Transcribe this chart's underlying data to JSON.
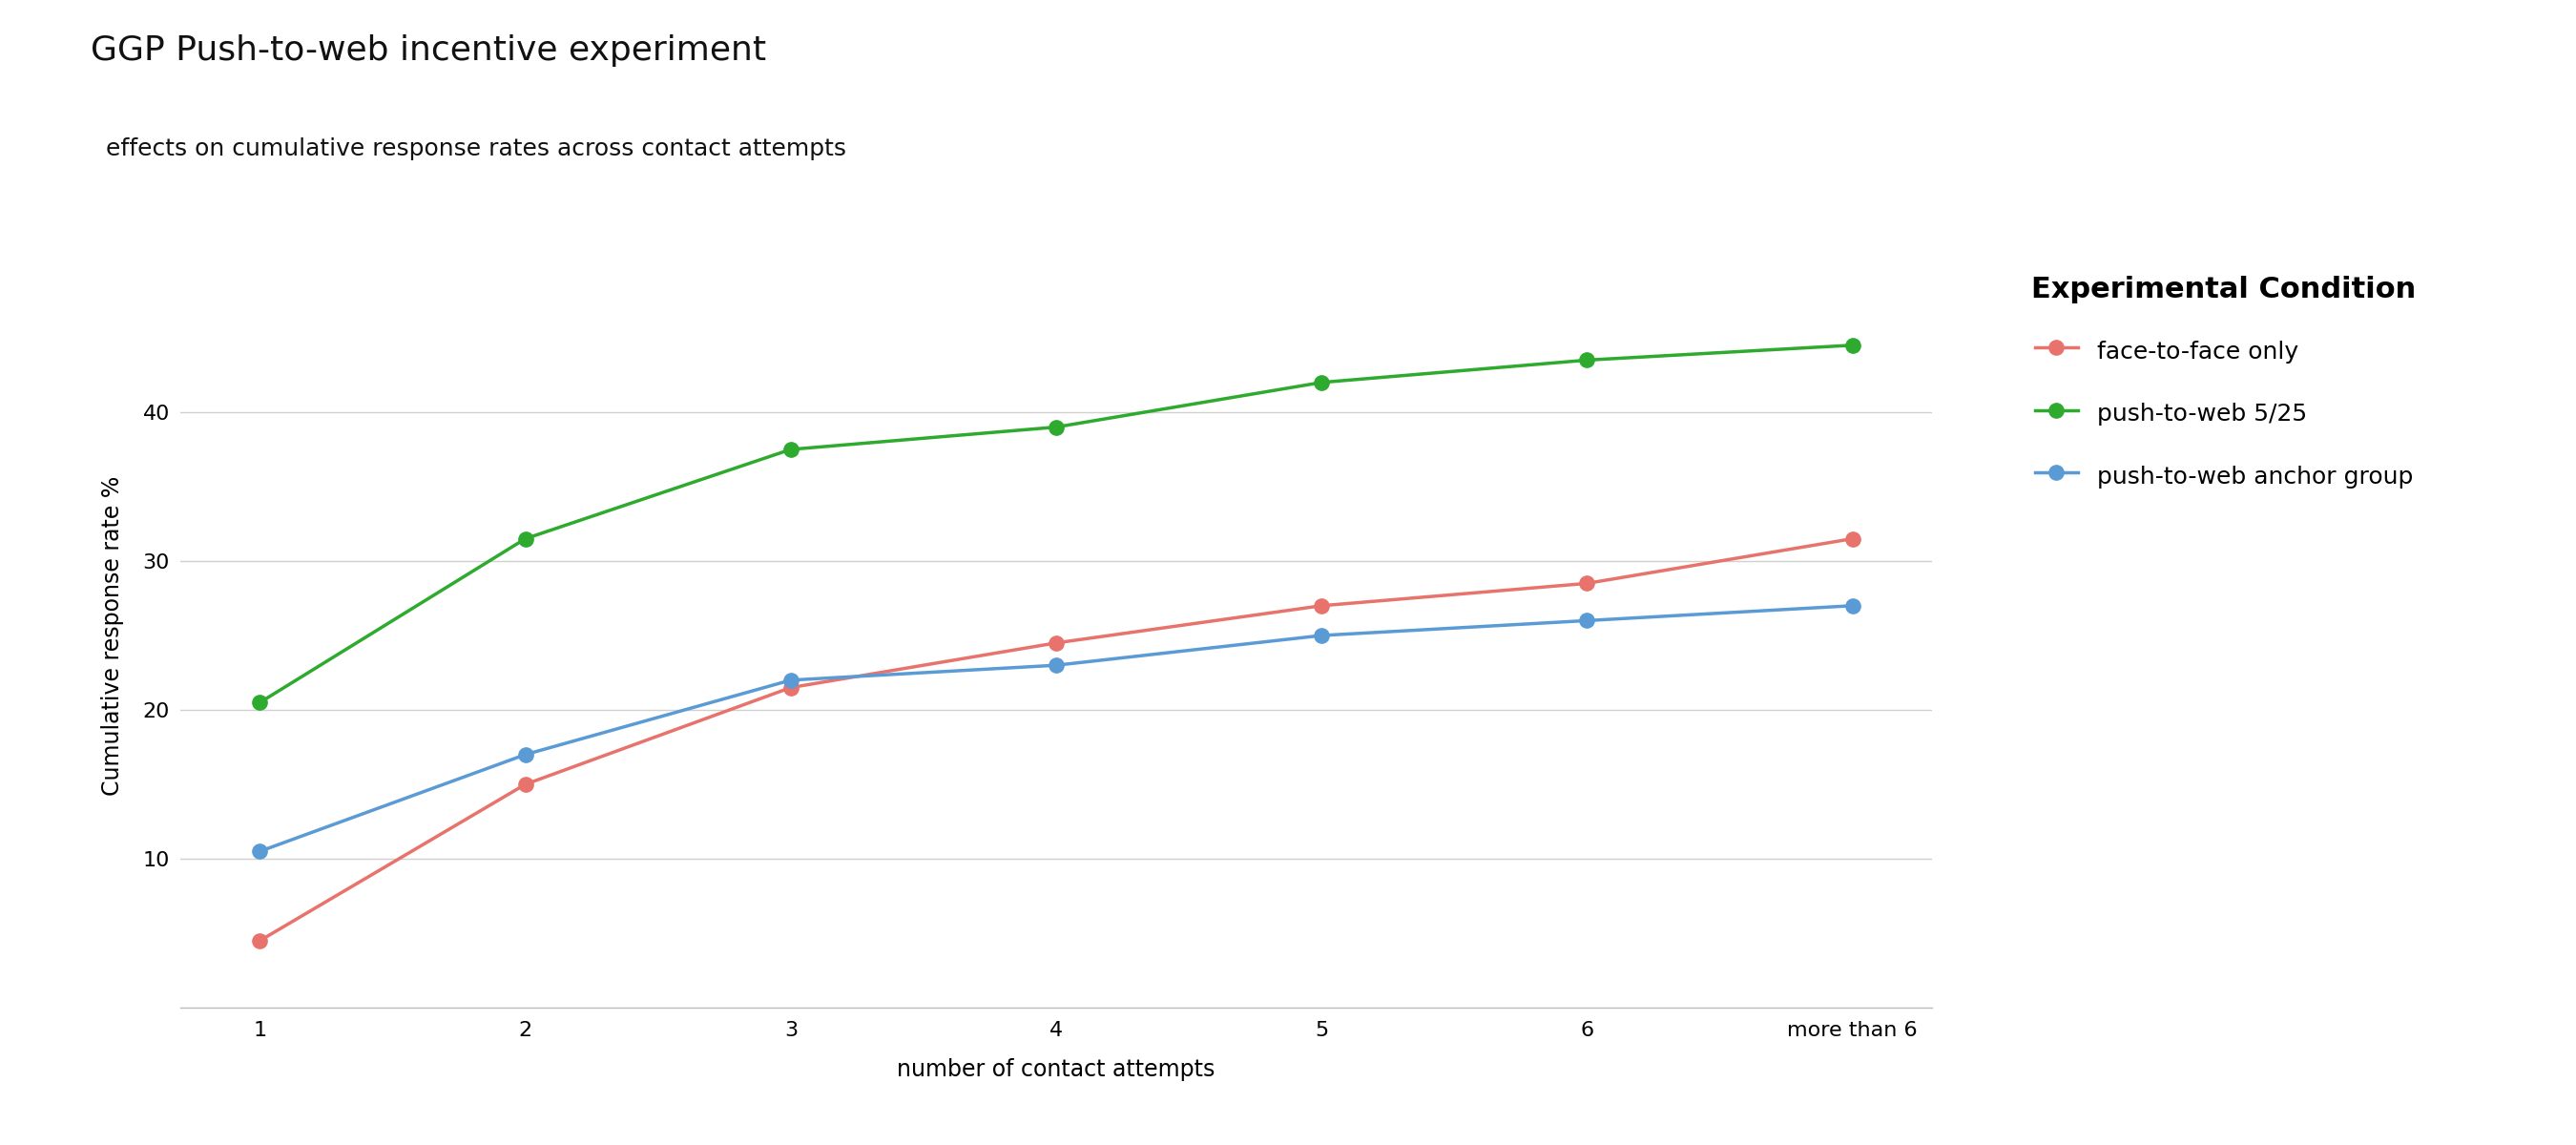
{
  "title": "GGP Push-to-web incentive experiment",
  "subtitle": "  effects on cumulative response rates across contact attempts",
  "xlabel": "number of contact attempts",
  "ylabel": "Cumulative response rate %",
  "x_labels": [
    "1",
    "2",
    "3",
    "4",
    "5",
    "6",
    "more than 6"
  ],
  "x_values": [
    1,
    2,
    3,
    4,
    5,
    6,
    7
  ],
  "series": [
    {
      "label": "face-to-face only",
      "color": "#e8736c",
      "values": [
        4.5,
        15.0,
        21.5,
        24.5,
        27.0,
        28.5,
        31.5
      ]
    },
    {
      "label": "push-to-web 5/25",
      "color": "#2eaa2e",
      "values": [
        20.5,
        31.5,
        37.5,
        39.0,
        42.0,
        43.5,
        44.5
      ]
    },
    {
      "label": "push-to-web anchor group",
      "color": "#5b9bd5",
      "values": [
        10.5,
        17.0,
        22.0,
        23.0,
        25.0,
        26.0,
        27.0
      ]
    }
  ],
  "ylim": [
    0,
    50
  ],
  "yticks": [
    10,
    20,
    30,
    40
  ],
  "legend_title": "Experimental Condition",
  "background_color": "#ffffff",
  "grid_color": "#d0d0d0",
  "title_fontsize": 26,
  "subtitle_fontsize": 18,
  "axis_label_fontsize": 17,
  "tick_fontsize": 16,
  "legend_fontsize": 18,
  "legend_title_fontsize": 22,
  "line_width": 2.5,
  "marker_size": 11
}
